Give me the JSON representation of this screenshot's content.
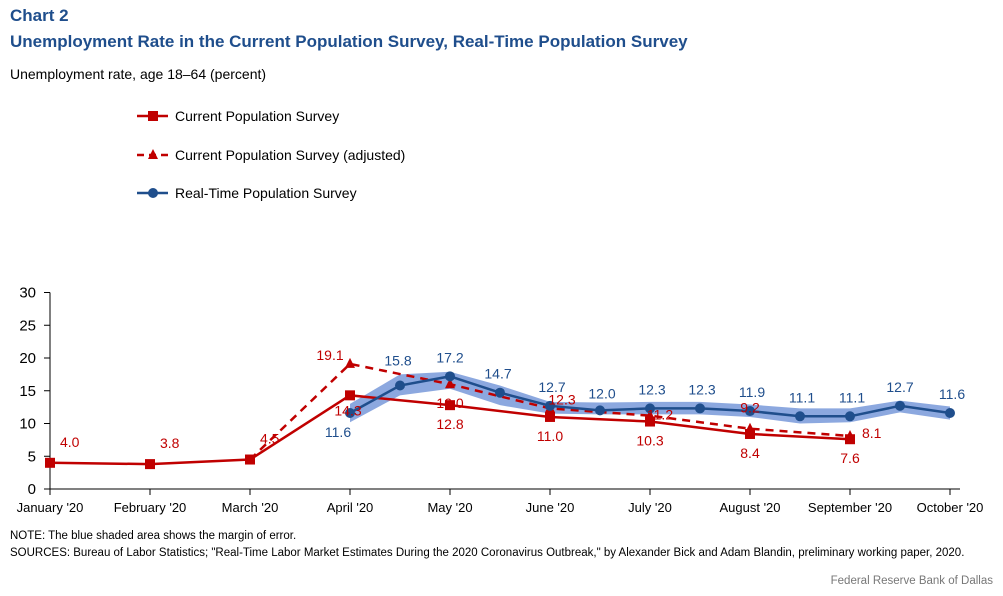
{
  "header": {
    "chart_number": "Chart 2",
    "title": "Unemployment Rate in the Current Population Survey, Real-Time Population Survey"
  },
  "footer": {
    "note": "NOTE: The blue shaded area shows the margin of error.",
    "sources": "SOURCES: Bureau of Labor Statistics; \"Real-Time Labor Market Estimates During the 2020 Coronavirus Outbreak,\" by Alexander Bick and Adam Blandin, preliminary working paper, 2020.",
    "credit": "Federal Reserve Bank of Dallas"
  },
  "colors": {
    "cps": "#c00000",
    "rps": "#1f4e8c",
    "band": "#7f9fdc"
  },
  "chart_data": {
    "type": "line",
    "title": "Unemployment Rate in the Current Population Survey, Real-Time Population Survey",
    "ylabel": "Unemployment rate, age 18–64 (percent)",
    "xlabel": "",
    "ylim": [
      0,
      30
    ],
    "yticks": [
      0,
      5,
      10,
      15,
      20,
      25,
      30
    ],
    "xticks": [
      "January '20",
      "February '20",
      "March '20",
      "April '20",
      "May '20",
      "June '20",
      "July '20",
      "August '20",
      "September '20",
      "October '20"
    ],
    "legend_position": "top-left",
    "grid": false,
    "series": [
      {
        "name": "Current Population Survey",
        "style": "solid-square",
        "points": [
          {
            "x": 0,
            "y": 4.0,
            "label": "4.0"
          },
          {
            "x": 1,
            "y": 3.8,
            "label": "3.8"
          },
          {
            "x": 2,
            "y": 4.5,
            "label": "4.5"
          },
          {
            "x": 3,
            "y": 14.3,
            "label": "14.3"
          },
          {
            "x": 4,
            "y": 12.8,
            "label": "12.8"
          },
          {
            "x": 5,
            "y": 11.0,
            "label": "11.0"
          },
          {
            "x": 6,
            "y": 10.3,
            "label": "10.3"
          },
          {
            "x": 7,
            "y": 8.4,
            "label": "8.4"
          },
          {
            "x": 8,
            "y": 7.6,
            "label": "7.6"
          }
        ]
      },
      {
        "name": "Current Population Survey (adjusted)",
        "style": "dashed-triangle",
        "points": [
          {
            "x": 2,
            "y": 4.5,
            "label": ""
          },
          {
            "x": 3,
            "y": 19.1,
            "label": "19.1"
          },
          {
            "x": 4,
            "y": 16.0,
            "label": "16.0"
          },
          {
            "x": 5,
            "y": 12.3,
            "label": "12.3"
          },
          {
            "x": 6,
            "y": 11.2,
            "label": "11.2"
          },
          {
            "x": 7,
            "y": 9.2,
            "label": "9.2"
          },
          {
            "x": 8,
            "y": 8.1,
            "label": "8.1"
          }
        ]
      },
      {
        "name": "Real-Time Population Survey",
        "style": "solid-circle",
        "points": [
          {
            "x": 3.0,
            "y": 11.6,
            "label": "11.6"
          },
          {
            "x": 3.5,
            "y": 15.8,
            "label": "15.8"
          },
          {
            "x": 4.0,
            "y": 17.2,
            "label": "17.2"
          },
          {
            "x": 4.5,
            "y": 14.7,
            "label": "14.7"
          },
          {
            "x": 5.0,
            "y": 12.7,
            "label": "12.7"
          },
          {
            "x": 5.5,
            "y": 12.0,
            "label": "12.0"
          },
          {
            "x": 6.0,
            "y": 12.3,
            "label": "12.3"
          },
          {
            "x": 6.5,
            "y": 12.3,
            "label": "12.3"
          },
          {
            "x": 7.0,
            "y": 11.9,
            "label": "11.9"
          },
          {
            "x": 7.5,
            "y": 11.1,
            "label": "11.1"
          },
          {
            "x": 8.0,
            "y": 11.1,
            "label": "11.1"
          },
          {
            "x": 8.5,
            "y": 12.7,
            "label": "12.7"
          },
          {
            "x": 9.0,
            "y": 11.6,
            "label": "11.6"
          }
        ],
        "margin_of_error": {
          "upper": [
            13.0,
            17.5,
            17.9,
            15.8,
            13.3,
            13.2,
            13.3,
            13.3,
            12.9,
            12.3,
            12.3,
            13.5,
            12.6
          ],
          "lower": [
            10.2,
            14.3,
            15.3,
            12.8,
            11.5,
            11.4,
            11.4,
            11.4,
            11.0,
            10.0,
            10.2,
            11.7,
            10.6
          ]
        }
      }
    ]
  }
}
